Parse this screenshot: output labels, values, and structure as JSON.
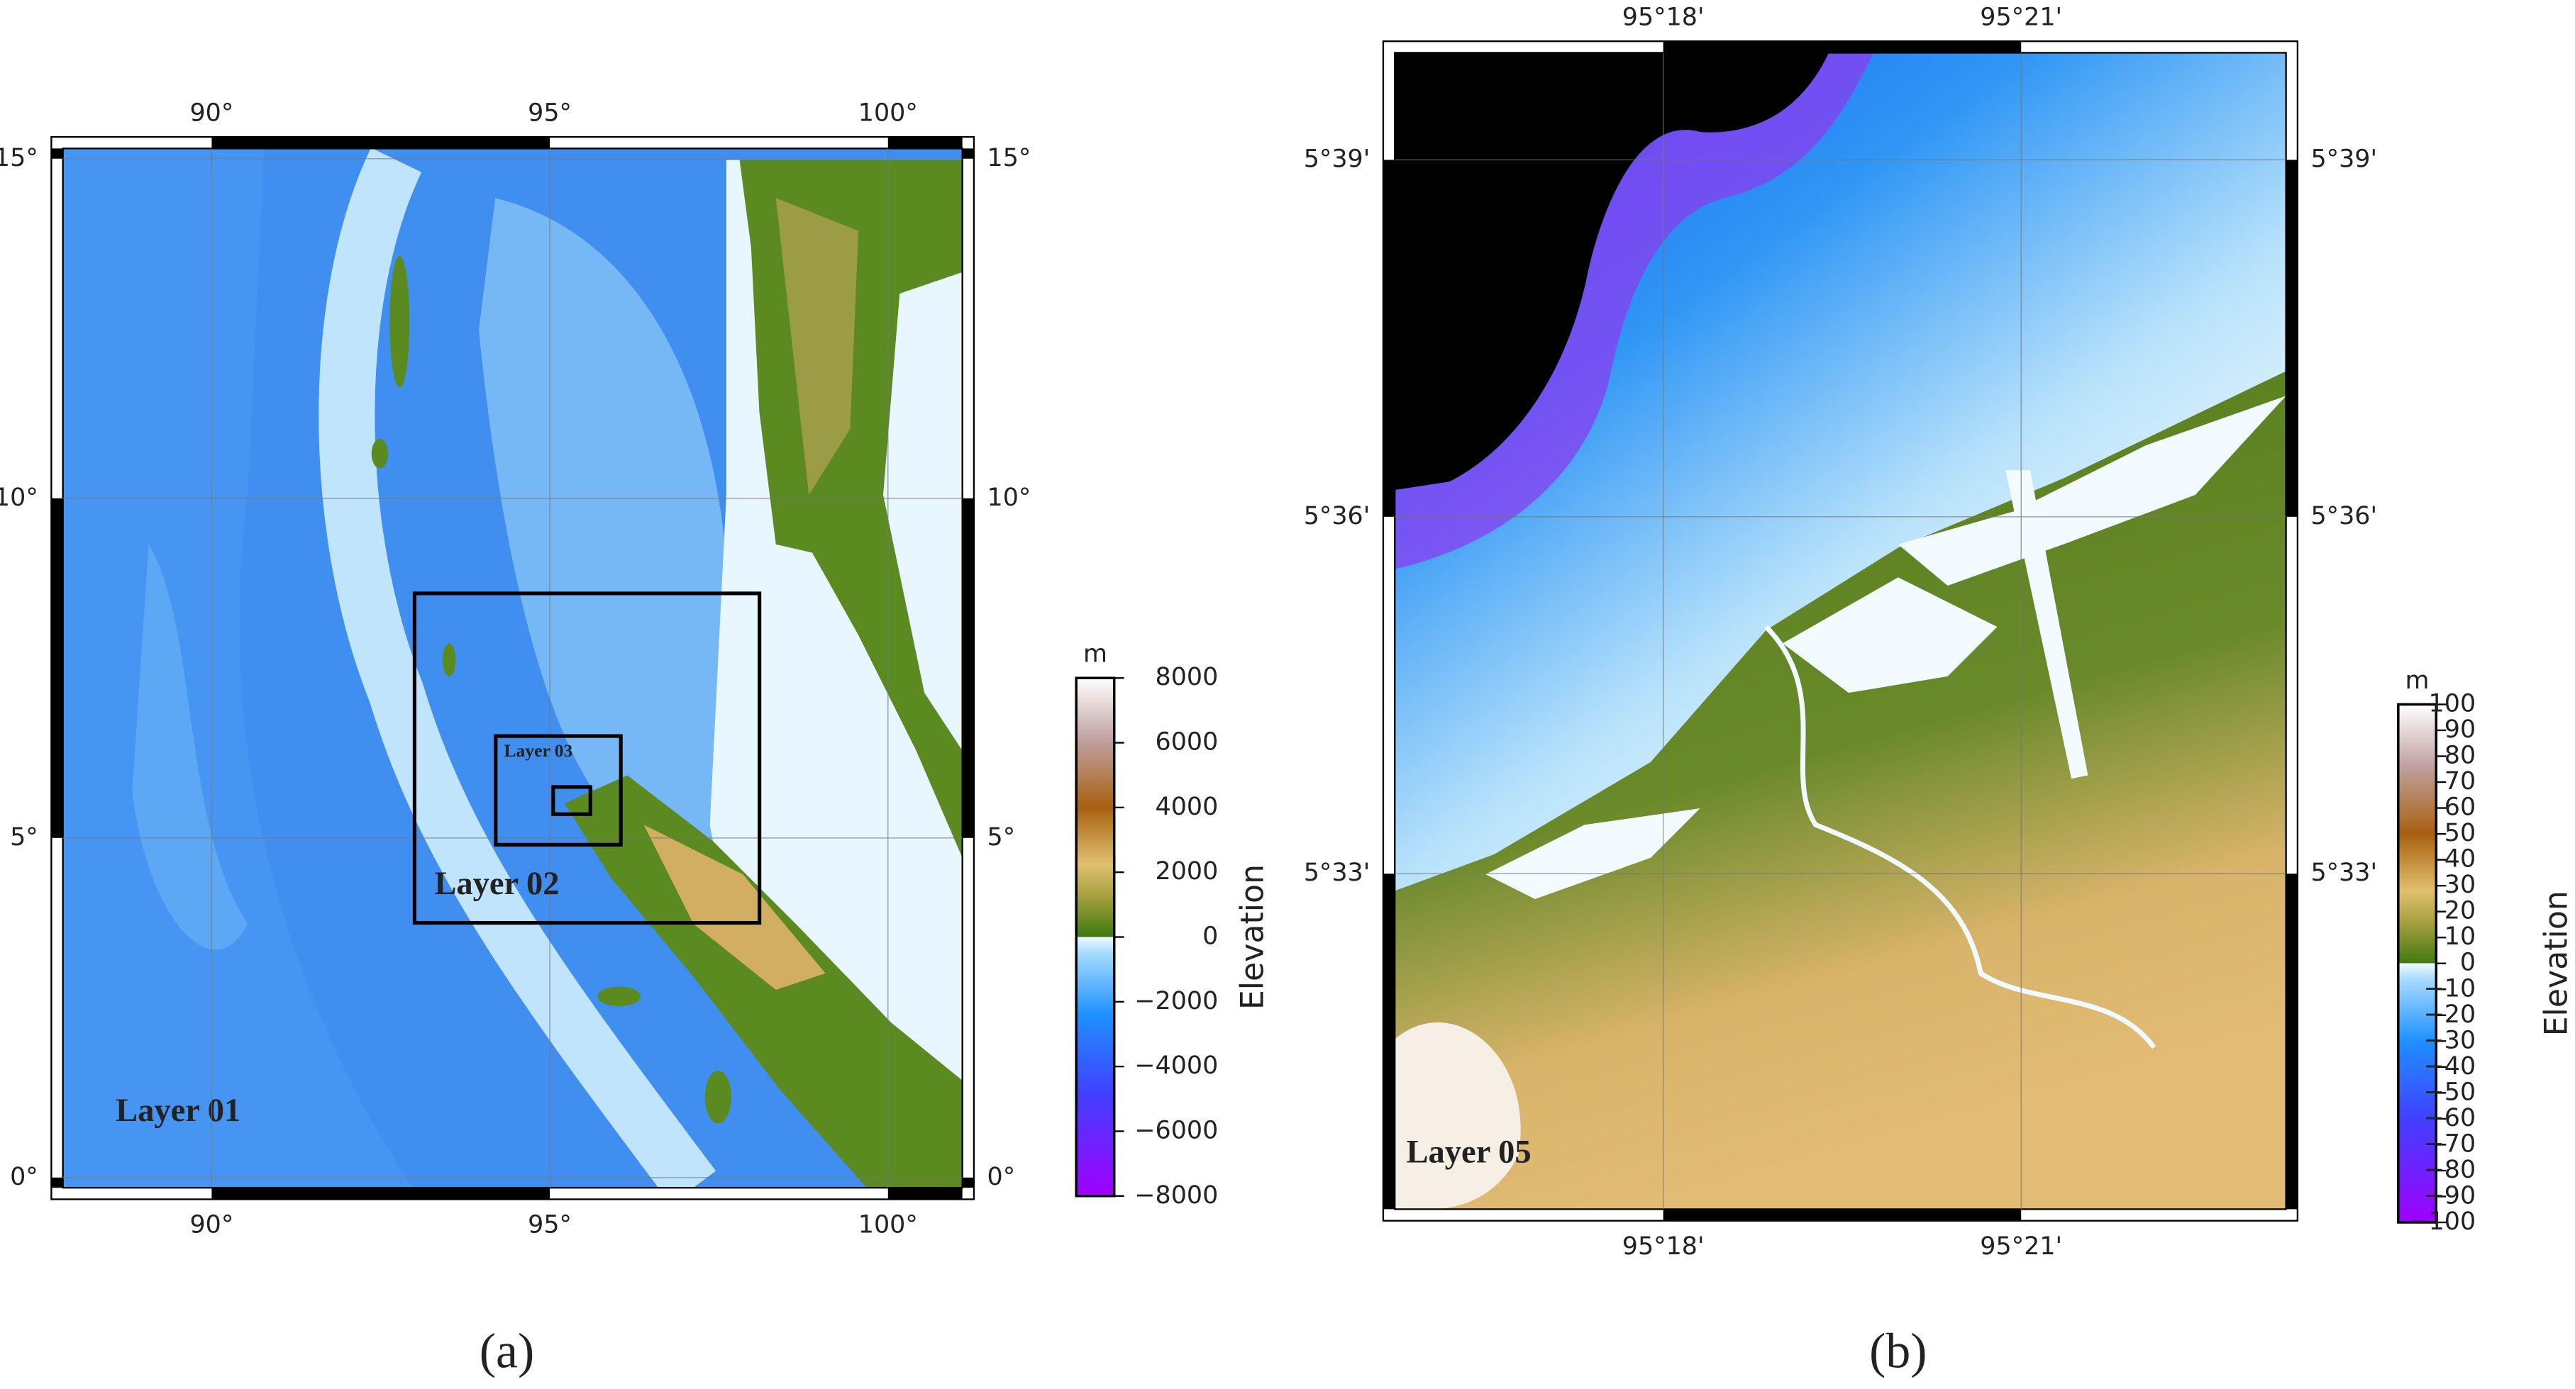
{
  "panels": [
    {
      "caption": "(a)",
      "xlim": [
        87.8,
        101.1
      ],
      "ylim": [
        -0.15,
        15.15
      ],
      "lon_ticks": [
        {
          "value": 90,
          "label": "90°"
        },
        {
          "value": 95,
          "label": "95°"
        },
        {
          "value": 100,
          "label": "100°"
        }
      ],
      "lat_ticks": [
        {
          "value": 0,
          "label": "0°"
        },
        {
          "value": 5,
          "label": "5°"
        },
        {
          "value": 10,
          "label": "10°"
        },
        {
          "value": 15,
          "label": "15°"
        }
      ],
      "map_label": "Layer 01",
      "boxes": [
        {
          "label": "Layer 02",
          "extent": [
            93.0,
            98.1,
            3.75,
            8.6
          ]
        },
        {
          "label": "Layer 03",
          "extent": [
            94.2,
            96.05,
            4.9,
            6.5
          ]
        },
        {
          "extent": [
            95.05,
            95.6,
            5.35,
            5.75
          ]
        }
      ],
      "colorbar": {
        "unit": "m",
        "title": "Elevation",
        "lim": [
          -8000,
          8000
        ],
        "ticks": [
          8000,
          6000,
          4000,
          2000,
          0,
          {
            "value": -2000,
            "label": "−2000"
          },
          {
            "value": -4000,
            "label": "−4000"
          },
          {
            "value": -6000,
            "label": "−6000"
          },
          {
            "value": -8000,
            "label": "−8000"
          }
        ]
      }
    },
    {
      "caption": "(b)",
      "xlim": [
        95.2625,
        95.387
      ],
      "ylim": [
        5.503,
        5.665
      ],
      "lon_ticks": [
        {
          "value": 95.3,
          "label": "95°18'"
        },
        {
          "value": 95.35,
          "label": "95°21'"
        }
      ],
      "lat_ticks": [
        {
          "value": 5.55,
          "label": "5°33'"
        },
        {
          "value": 5.6,
          "label": "5°36'"
        },
        {
          "value": 5.65,
          "label": "5°39'"
        }
      ],
      "map_label": "Layer 05",
      "boxes": [],
      "colorbar": {
        "unit": "m",
        "title": "Elevation",
        "lim": [
          -100,
          100
        ],
        "ticks": [
          100,
          90,
          80,
          70,
          60,
          50,
          40,
          30,
          20,
          10,
          0,
          {
            "value": -10,
            "label": "−10"
          },
          {
            "value": -20,
            "label": "−20"
          },
          {
            "value": -30,
            "label": "−30"
          },
          {
            "value": -40,
            "label": "−40"
          },
          {
            "value": -50,
            "label": "−50"
          },
          {
            "value": -60,
            "label": "−60"
          },
          {
            "value": -70,
            "label": "−70"
          },
          {
            "value": -80,
            "label": "−80"
          },
          {
            "value": -90,
            "label": "−90"
          },
          {
            "value": -100,
            "label": "−100"
          }
        ]
      }
    }
  ]
}
